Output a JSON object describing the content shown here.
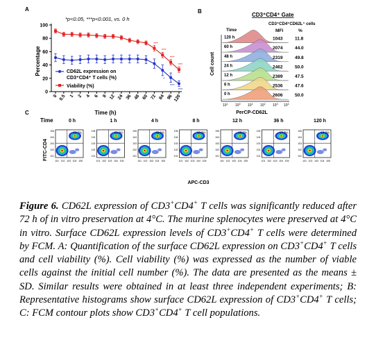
{
  "panel_a": {
    "label": "A",
    "significance": "*p<0.05, ***p<0.001, vs. 0 h",
    "legend_cd62l_line1": "CD62L expression on",
    "legend_cd62l_line2": "CD3⁺CD4⁺ T cells (%)",
    "legend_viability": "Viability (%)"
  },
  "panel_b": {
    "label": "B",
    "gate_title": "CD3⁺CD4⁺ Gate",
    "subset_title": "CD3⁺CD4⁺CD62L⁺ cells",
    "col_time": "Time",
    "col_mfi": "MFI",
    "col_pct": "%",
    "rows": [
      {
        "time": "120 h",
        "mfi": "1043",
        "pct": "11.8",
        "color": "#e08a8a"
      },
      {
        "time": "60 h",
        "mfi": "2074",
        "pct": "44.0",
        "color": "#c98fd0"
      },
      {
        "time": "48 h",
        "mfi": "2319",
        "pct": "49.8",
        "color": "#8fb0e0"
      },
      {
        "time": "24 h",
        "mfi": "2462",
        "pct": "50.0",
        "color": "#8fd6c8"
      },
      {
        "time": "12 h",
        "mfi": "2389",
        "pct": "47.5",
        "color": "#b9e08f"
      },
      {
        "time": "6 h",
        "mfi": "2536",
        "pct": "47.6",
        "color": "#f0d78a"
      },
      {
        "time": "0 h",
        "mfi": "2606",
        "pct": "50.0",
        "color": "#f0a07a"
      }
    ],
    "ylabel": "Cell count",
    "xlabel": "PerCP-CD62L"
  },
  "panel_c": {
    "label": "C",
    "time_header": "Time",
    "ylabel": "FITC-CD4",
    "xlabel": "APC-CD3",
    "plots": [
      {
        "time": "0 h",
        "pct": "23.7%"
      },
      {
        "time": "1 h",
        "pct": "21.0%"
      },
      {
        "time": "4 h",
        "pct": "22.6%"
      },
      {
        "time": "8 h",
        "pct": "19.0%"
      },
      {
        "time": "12 h",
        "pct": "18.3%"
      },
      {
        "time": "36 h",
        "pct": "17.8%"
      },
      {
        "time": "120 h",
        "pct": "19.9%"
      }
    ]
  },
  "chart_data": {
    "type": "line",
    "xlabel": "Time (h)",
    "ylabel": "Percentage",
    "ylim": [
      0,
      100
    ],
    "y_ticks": [
      0,
      20,
      40,
      60,
      80,
      100
    ],
    "categories": [
      "0",
      "0.5",
      "1",
      "2",
      "4",
      "6",
      "8",
      "12",
      "24",
      "36",
      "48",
      "60",
      "72",
      "84",
      "96",
      "120"
    ],
    "series": [
      {
        "name": "CD62L expression on CD3⁺CD4⁺ T cells (%)",
        "color": "#2233cc",
        "marker": "circle",
        "values": [
          51,
          48,
          47,
          48,
          49,
          49,
          48,
          49,
          49,
          49,
          49,
          48,
          42,
          32,
          21,
          12
        ],
        "errors": [
          6,
          6,
          6,
          6,
          6,
          6,
          6,
          6,
          6,
          6,
          6,
          6,
          7,
          8,
          7,
          4
        ]
      },
      {
        "name": "Viability (%)",
        "color": "#e02222",
        "marker": "square",
        "values": [
          91,
          86,
          86,
          85,
          85,
          84,
          83,
          83,
          81,
          77,
          75,
          73,
          65,
          55,
          44,
          33
        ],
        "errors": [
          3,
          3,
          3,
          3,
          3,
          3,
          3,
          3,
          3,
          3,
          3,
          3,
          4,
          4,
          4,
          4
        ]
      }
    ],
    "annotations": [
      {
        "series": 1,
        "index": 12,
        "text": "***"
      },
      {
        "series": 1,
        "index": 13,
        "text": "***"
      },
      {
        "series": 1,
        "index": 14,
        "text": "***"
      },
      {
        "series": 1,
        "index": 15,
        "text": "***"
      },
      {
        "series": 0,
        "index": 13,
        "text": "*"
      },
      {
        "series": 0,
        "index": 14,
        "text": "***"
      },
      {
        "series": 0,
        "index": 15,
        "text": "***"
      }
    ],
    "legend_position": "bottom-left"
  }
}
